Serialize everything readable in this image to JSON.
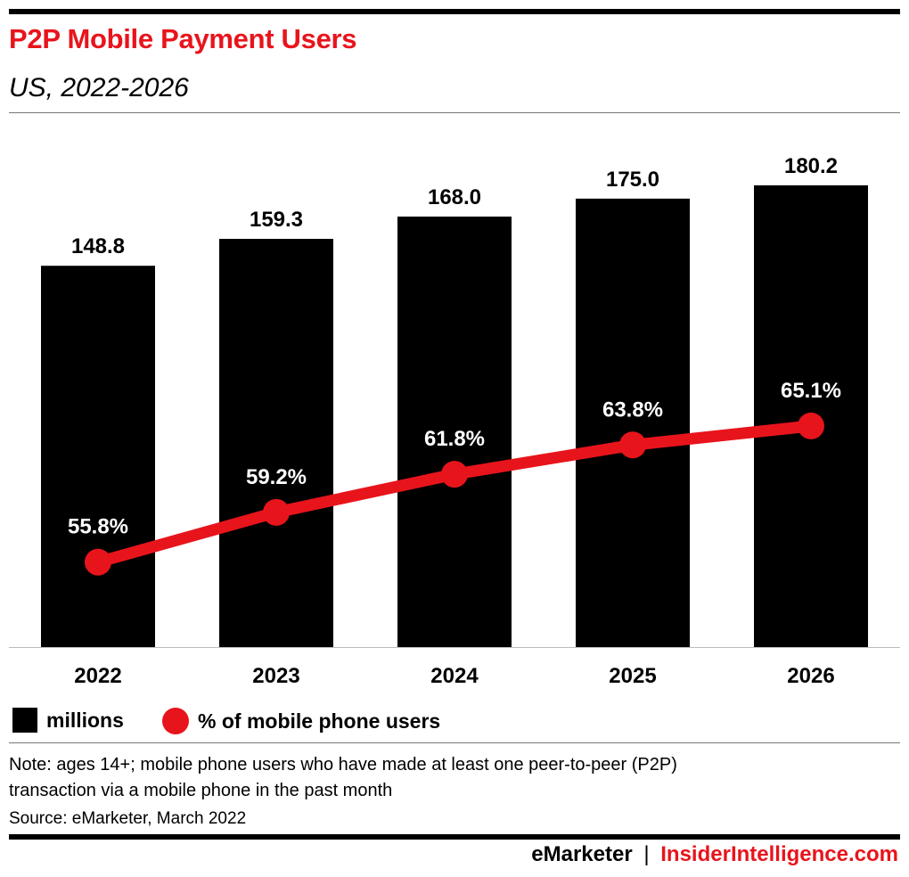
{
  "title": "P2P Mobile Payment Users",
  "subtitle": "US, 2022-2026",
  "chart_data": {
    "type": "bar+line",
    "categories": [
      "2022",
      "2023",
      "2024",
      "2025",
      "2026"
    ],
    "series": [
      {
        "name": "millions",
        "type": "bar",
        "values": [
          148.8,
          159.3,
          168.0,
          175.0,
          180.2
        ],
        "labels": [
          "148.8",
          "159.3",
          "168.0",
          "175.0",
          "180.2"
        ],
        "color": "#000000"
      },
      {
        "name": "% of mobile phone users",
        "type": "line",
        "values": [
          55.8,
          59.2,
          61.8,
          63.8,
          65.1
        ],
        "labels": [
          "55.8%",
          "59.2%",
          "61.8%",
          "63.8%",
          "65.1%"
        ],
        "color": "#e8141c"
      }
    ],
    "ylim": [
      0,
      200
    ],
    "y2lim": [
      50,
      85
    ],
    "grid": false,
    "legend_placement": "bottom-left"
  },
  "note_line1": "Note: ages 14+; mobile phone users who have made at least one peer-to-peer (P2P)",
  "note_line2": "transaction via a mobile phone in the past month",
  "source": "Source: eMarketer, March 2022",
  "footer": {
    "brand1": "eMarketer",
    "sep": "|",
    "brand2": "InsiderIntelligence.com",
    "brand1_color": "#000000",
    "brand2_color": "#e8141c"
  }
}
